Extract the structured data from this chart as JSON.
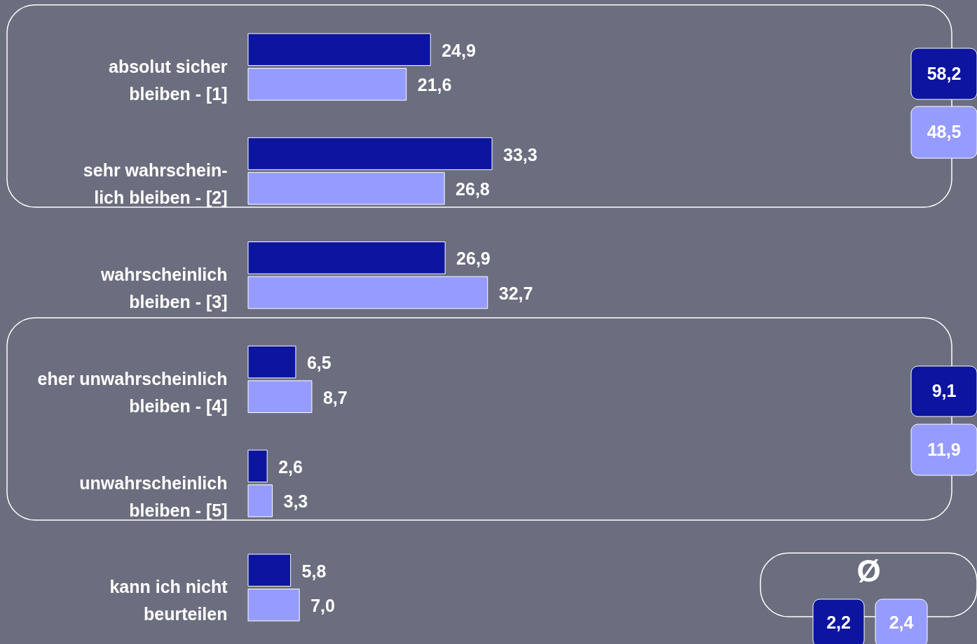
{
  "chart_data": {
    "type": "bar",
    "orientation": "horizontal",
    "categories": [
      "absolut sicher\nbleiben - [1]",
      "sehr wahrschein-\nlich bleiben - [2]",
      "wahrscheinlich\nbleiben - [3]",
      "eher unwahrscheinlich\nbleiben - [4]",
      "unwahrscheinlich\nbleiben - [5]",
      "kann ich nicht\nbeurteilen"
    ],
    "series": [
      {
        "color": "#0c14a0",
        "values": [
          24.9,
          33.3,
          26.9,
          6.5,
          2.6,
          5.8
        ],
        "value_labels": [
          "24,9",
          "33,3",
          "26,9",
          "6,5",
          "2,6",
          "5,8"
        ]
      },
      {
        "color": "#969cff",
        "values": [
          21.6,
          26.8,
          32.7,
          8.7,
          3.3,
          7.0
        ],
        "value_labels": [
          "21,6",
          "26,8",
          "32,7",
          "8,7",
          "3,3",
          "7,0"
        ]
      }
    ],
    "annotations": [
      "58,2",
      "48,5",
      "9,1",
      "11,9",
      "Ø",
      "2,2",
      "2,4"
    ]
  }
}
